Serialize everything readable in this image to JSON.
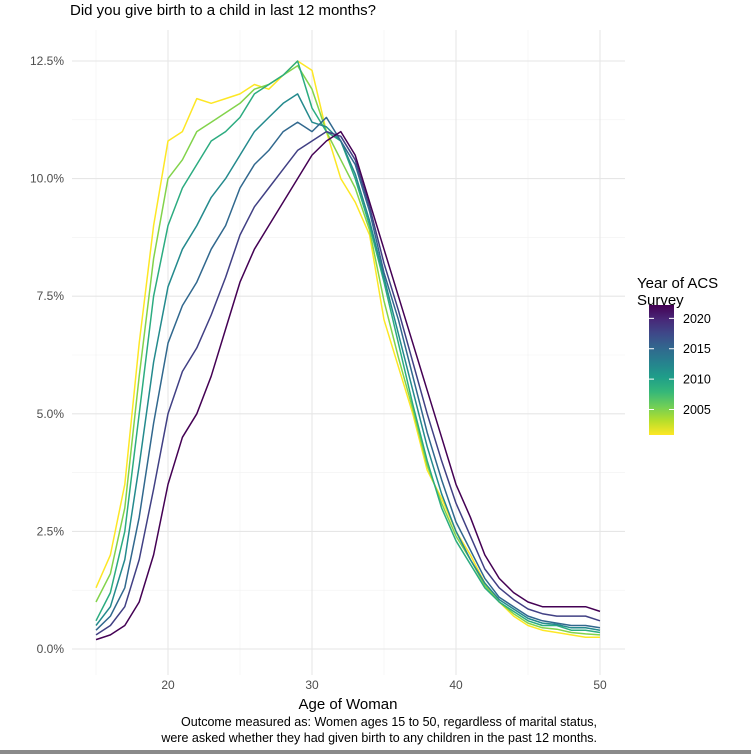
{
  "chart_data": {
    "type": "line",
    "title": "Did you give birth to a child in last 12 months?",
    "xlabel": "Age of Woman",
    "ylabel": "",
    "caption": [
      "Outcome measured as: Women ages 15 to 50, regardless of marital status,",
      "were asked whether they had given birth to any children in the past 12 months."
    ],
    "xlim": [
      15,
      50
    ],
    "ylim": [
      0,
      12.5
    ],
    "x_ticks": [
      "20",
      "30",
      "40",
      "50"
    ],
    "y_ticks": [
      "0.0%",
      "2.5%",
      "5.0%",
      "7.5%",
      "10.0%",
      "12.5%"
    ],
    "grid": true,
    "legend": {
      "title": "Year of ACS Survey",
      "title_lines": [
        "Year of ACS",
        "Survey"
      ],
      "placement": "right",
      "ticks": [
        "2020",
        "2015",
        "2010",
        "2005"
      ],
      "range": [
        2001,
        2022
      ],
      "colorscale": [
        "#fde725",
        "#b5de2b",
        "#6ece58",
        "#35b779",
        "#1f9e89",
        "#26828e",
        "#31688e",
        "#3e4989",
        "#482878",
        "#440154"
      ]
    },
    "x": [
      15,
      16,
      17,
      18,
      19,
      20,
      21,
      22,
      23,
      24,
      25,
      26,
      27,
      28,
      29,
      30,
      31,
      32,
      33,
      34,
      35,
      36,
      37,
      38,
      39,
      40,
      41,
      42,
      43,
      44,
      45,
      46,
      47,
      48,
      49,
      50
    ],
    "series": [
      {
        "year": 2001,
        "values": [
          1.3,
          2.0,
          3.5,
          6.5,
          9.0,
          10.8,
          11.0,
          11.7,
          11.6,
          11.7,
          11.8,
          12.0,
          11.9,
          12.2,
          12.5,
          12.3,
          11.0,
          10.0,
          9.5,
          8.8,
          7.0,
          6.0,
          5.0,
          3.8,
          3.2,
          2.5,
          2.0,
          1.4,
          1.0,
          0.7,
          0.5,
          0.4,
          0.35,
          0.3,
          0.25,
          0.25
        ]
      },
      {
        "year": 2005,
        "values": [
          1.0,
          1.6,
          3.0,
          5.8,
          8.3,
          10.0,
          10.4,
          11.0,
          11.2,
          11.4,
          11.6,
          11.9,
          12.0,
          12.2,
          12.4,
          11.9,
          11.0,
          10.4,
          9.8,
          8.9,
          7.4,
          6.2,
          5.1,
          3.9,
          3.1,
          2.4,
          1.9,
          1.35,
          1.0,
          0.75,
          0.55,
          0.45,
          0.42,
          0.35,
          0.32,
          0.3
        ]
      },
      {
        "year": 2009,
        "values": [
          0.6,
          1.2,
          2.5,
          5.0,
          7.5,
          9.0,
          9.8,
          10.3,
          10.8,
          11.0,
          11.3,
          11.8,
          12.0,
          12.2,
          12.5,
          11.5,
          11.0,
          10.8,
          10.0,
          9.0,
          7.8,
          6.5,
          5.2,
          4.0,
          3.0,
          2.3,
          1.8,
          1.3,
          1.0,
          0.8,
          0.6,
          0.5,
          0.5,
          0.4,
          0.4,
          0.35
        ]
      },
      {
        "year": 2012,
        "values": [
          0.5,
          0.9,
          1.9,
          3.9,
          6.1,
          7.7,
          8.5,
          9.0,
          9.6,
          10.0,
          10.5,
          11.0,
          11.3,
          11.6,
          11.8,
          11.2,
          11.1,
          10.8,
          10.1,
          9.1,
          7.9,
          6.7,
          5.5,
          4.3,
          3.3,
          2.5,
          1.9,
          1.4,
          1.05,
          0.85,
          0.65,
          0.55,
          0.52,
          0.45,
          0.45,
          0.4
        ]
      },
      {
        "year": 2015,
        "values": [
          0.4,
          0.7,
          1.3,
          2.8,
          4.8,
          6.5,
          7.3,
          7.8,
          8.5,
          9.0,
          9.8,
          10.3,
          10.6,
          11.0,
          11.2,
          11.0,
          11.3,
          10.8,
          10.3,
          9.3,
          8.0,
          7.0,
          5.8,
          4.6,
          3.6,
          2.7,
          2.1,
          1.5,
          1.1,
          0.9,
          0.7,
          0.6,
          0.55,
          0.5,
          0.5,
          0.45
        ]
      },
      {
        "year": 2018,
        "values": [
          0.3,
          0.5,
          0.9,
          1.9,
          3.4,
          5.0,
          5.9,
          6.4,
          7.1,
          7.9,
          8.8,
          9.4,
          9.8,
          10.2,
          10.6,
          10.8,
          11.0,
          10.9,
          10.4,
          9.4,
          8.2,
          7.2,
          6.1,
          5.0,
          4.0,
          3.1,
          2.4,
          1.7,
          1.3,
          1.05,
          0.85,
          0.75,
          0.7,
          0.7,
          0.7,
          0.6
        ]
      },
      {
        "year": 2022,
        "values": [
          0.2,
          0.3,
          0.5,
          1.0,
          2.0,
          3.5,
          4.5,
          5.0,
          5.8,
          6.8,
          7.8,
          8.5,
          9.0,
          9.5,
          10.0,
          10.5,
          10.8,
          11.0,
          10.5,
          9.5,
          8.5,
          7.5,
          6.5,
          5.5,
          4.5,
          3.5,
          2.8,
          2.0,
          1.5,
          1.2,
          1.0,
          0.9,
          0.9,
          0.9,
          0.9,
          0.8
        ]
      }
    ]
  }
}
